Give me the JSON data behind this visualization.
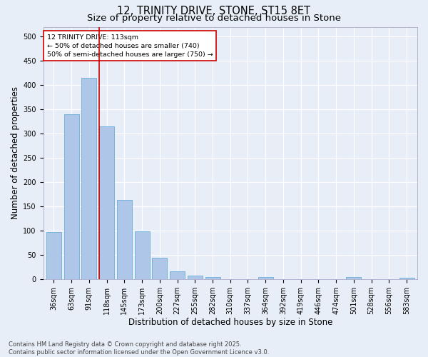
{
  "title_line1": "12, TRINITY DRIVE, STONE, ST15 8ET",
  "title_line2": "Size of property relative to detached houses in Stone",
  "xlabel": "Distribution of detached houses by size in Stone",
  "ylabel": "Number of detached properties",
  "bar_labels": [
    "36sqm",
    "63sqm",
    "91sqm",
    "118sqm",
    "145sqm",
    "173sqm",
    "200sqm",
    "227sqm",
    "255sqm",
    "282sqm",
    "310sqm",
    "337sqm",
    "364sqm",
    "392sqm",
    "419sqm",
    "446sqm",
    "474sqm",
    "501sqm",
    "528sqm",
    "556sqm",
    "583sqm"
  ],
  "bar_values": [
    97,
    340,
    415,
    315,
    163,
    98,
    44,
    17,
    8,
    5,
    0,
    0,
    4,
    0,
    0,
    0,
    0,
    4,
    0,
    0,
    3
  ],
  "bar_color": "#aec6e8",
  "bar_edgecolor": "#6aaed6",
  "bg_color": "#e8eef8",
  "grid_color": "#ffffff",
  "vline_color": "#cc0000",
  "annotation_text": "12 TRINITY DRIVE: 113sqm\n← 50% of detached houses are smaller (740)\n50% of semi-detached houses are larger (750) →",
  "annotation_box_edgecolor": "#cc0000",
  "annotation_box_facecolor": "#ffffff",
  "ylim": [
    0,
    520
  ],
  "yticks": [
    0,
    50,
    100,
    150,
    200,
    250,
    300,
    350,
    400,
    450,
    500
  ],
  "footer": "Contains HM Land Registry data © Crown copyright and database right 2025.\nContains public sector information licensed under the Open Government Licence v3.0.",
  "title_fontsize": 10.5,
  "subtitle_fontsize": 9.5,
  "tick_fontsize": 7,
  "ylabel_fontsize": 8.5,
  "xlabel_fontsize": 8.5,
  "footer_fontsize": 6.0
}
